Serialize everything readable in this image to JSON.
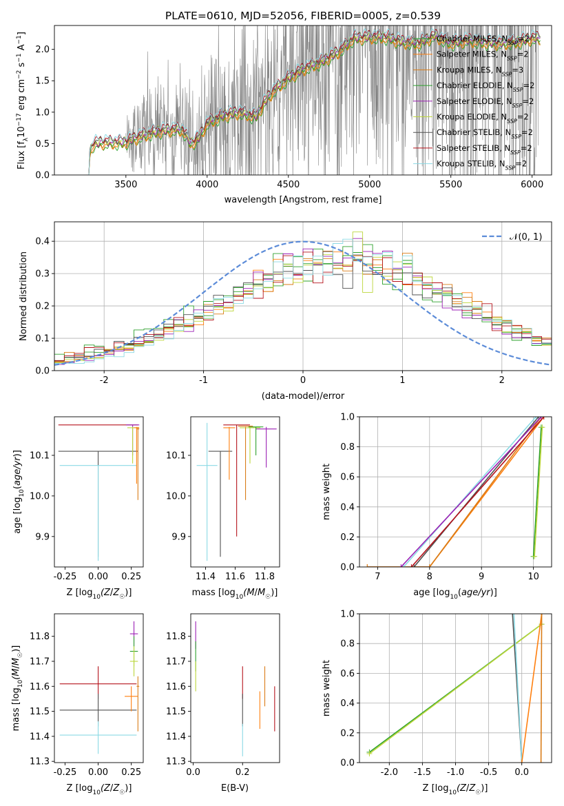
{
  "title": "PLATE=0610, MJD=52056, FIBERID=0005, z=0.539",
  "colors": {
    "Chabrier MILES": "#2ca02c",
    "Salpeter MILES": "#ff7f0e",
    "Kroupa MILES": "#d97c17",
    "Chabrier ELODIE": "#2ca02c",
    "Salpeter ELODIE": "#9b1fb4",
    "Kroupa ELODIE": "#bcd63a",
    "Chabrier STELIB": "#505050",
    "Salpeter STELIB": "#b5121b",
    "Kroupa STELIB": "#8ad9e4",
    "data": "#808080",
    "normal": "#5b8bd8"
  },
  "legend": [
    {
      "prefix": "Chabrier MILES, N",
      "sub": "SSP",
      "suffix": "=2",
      "key": "Chabrier MILES"
    },
    {
      "prefix": "Salpeter MILES, N",
      "sub": "SSP",
      "suffix": "=2",
      "key": "Salpeter MILES"
    },
    {
      "prefix": "Kroupa MILES, N",
      "sub": "SSP",
      "suffix": "=3",
      "key": "Kroupa MILES"
    },
    {
      "prefix": "Chabrier ELODIE, N",
      "sub": "SSP",
      "suffix": "=2",
      "key": "Chabrier ELODIE"
    },
    {
      "prefix": "Salpeter ELODIE, N",
      "sub": "SSP",
      "suffix": "=2",
      "key": "Salpeter ELODIE"
    },
    {
      "prefix": "Kroupa ELODIE, N",
      "sub": "SSP",
      "suffix": "=2",
      "key": "Kroupa ELODIE"
    },
    {
      "prefix": "Chabrier STELIB, N",
      "sub": "SSP",
      "suffix": "=2",
      "key": "Chabrier STELIB"
    },
    {
      "prefix": "Salpeter STELIB, N",
      "sub": "SSP",
      "suffix": "=2",
      "key": "Salpeter STELIB"
    },
    {
      "prefix": "Kroupa STELIB, N",
      "sub": "SSP",
      "suffix": "=2",
      "key": "Kroupa STELIB"
    }
  ],
  "chart_data": [
    {
      "id": "spectrum",
      "type": "line",
      "xlabel": "wavelength [Angstrom, rest frame]",
      "ylabel_parts": {
        "a": "Flux [f",
        "sub1": "λ",
        "b": "10",
        "sup1": "−17",
        "c": " erg cm",
        "sup2": "−2",
        "d": " s",
        "sup3": "−1",
        "e": " A",
        "sup4": "−1",
        "f": "]"
      },
      "xlim": [
        3060,
        6120
      ],
      "ylim": [
        0,
        2.38
      ],
      "xticks": [
        3500,
        4000,
        4500,
        5000,
        5500,
        6000
      ],
      "yticks": [
        0.0,
        0.5,
        1.0,
        1.5,
        2.0
      ],
      "legend_position": "top-right",
      "grid": false,
      "model_continuum": {
        "x": [
          3260,
          3280,
          3300,
          3350,
          3400,
          3450,
          3500,
          3600,
          3700,
          3800,
          3850,
          3900,
          3950,
          4000,
          4100,
          4200,
          4300,
          4350,
          4400,
          4500,
          4600,
          4700,
          4800,
          4850,
          4900,
          5000,
          5100,
          5200,
          5300,
          5400,
          5500,
          5600,
          5700,
          5800,
          5900,
          6000,
          6050
        ],
        "y": [
          0.0,
          0.38,
          0.5,
          0.52,
          0.52,
          0.52,
          0.53,
          0.63,
          0.7,
          0.73,
          0.72,
          0.5,
          0.6,
          0.83,
          0.95,
          1.0,
          0.93,
          1.15,
          1.32,
          1.55,
          1.7,
          1.8,
          1.95,
          2.05,
          2.18,
          2.2,
          2.2,
          2.12,
          2.1,
          2.22,
          2.1,
          2.15,
          2.12,
          2.1,
          2.12,
          2.18,
          2.18
        ]
      },
      "data_range": [
        3500,
        6040
      ]
    },
    {
      "id": "residuals",
      "type": "step",
      "xlabel": "(data-model)/error",
      "ylabel": "Normed distribution",
      "xlim": [
        -2.5,
        2.5
      ],
      "ylim": [
        0,
        0.46
      ],
      "xticks": [
        -2,
        -1,
        0,
        1,
        2
      ],
      "yticks": [
        0.0,
        0.1,
        0.2,
        0.3,
        0.4
      ],
      "grid": true,
      "normal_label": "𝒩(0, 1)",
      "bins": 50,
      "shift": 0.4
    },
    {
      "id": "age-vs-Z",
      "type": "errorbar",
      "xlabel_parts": {
        "a": "Z [log",
        "sub": "10",
        "b": "(Z/Z",
        "c": "☉",
        "d": ")]"
      },
      "ylabel_parts": {
        "a": "age  [log",
        "sub": "10",
        "b": "(age/yr)]"
      },
      "xlim": [
        -0.33,
        0.34
      ],
      "ylim": [
        9.825,
        10.195
      ],
      "xticks": [
        -0.25,
        0.0,
        0.25
      ],
      "yticks": [
        9.9,
        10.0,
        10.1
      ],
      "points": [
        {
          "key": "Chabrier STELIB",
          "x": 0.0,
          "xerr": 0.3,
          "y": 10.11,
          "ylo": 9.85,
          "yhi": 10.11
        },
        {
          "key": "Kroupa STELIB",
          "x": 0.0,
          "xerr": 0.29,
          "y": 10.075,
          "ylo": 9.84,
          "yhi": 10.075
        },
        {
          "key": "Salpeter STELIB",
          "x": 0.0,
          "xerr": 0.3,
          "y": 10.175,
          "ylo": 10.175,
          "yhi": 10.175
        },
        {
          "key": "Salpeter ELODIE",
          "x": 0.26,
          "xerr": 0.05,
          "y": 10.175,
          "ylo": 10.1,
          "yhi": 10.175
        },
        {
          "key": "Kroupa ELODIE",
          "x": 0.26,
          "xerr": 0.04,
          "y": 10.168,
          "ylo": 10.08,
          "yhi": 10.17
        },
        {
          "key": "Salpeter MILES",
          "x": 0.29,
          "xerr": 0.02,
          "y": 10.168,
          "ylo": 10.03,
          "yhi": 10.17
        },
        {
          "key": "Kroupa MILES",
          "x": 0.3,
          "xerr": 0.01,
          "y": 10.165,
          "ylo": 9.99,
          "yhi": 10.17
        }
      ]
    },
    {
      "id": "age-vs-mass",
      "type": "errorbar",
      "xlabel_parts": {
        "a": "mass [log",
        "sub": "10",
        "b": "(M/M",
        "c": "☉",
        "d": ")]"
      },
      "xlim": [
        11.3,
        11.9
      ],
      "ylim": [
        9.825,
        10.195
      ],
      "xticks": [
        11.4,
        11.6,
        11.8
      ],
      "yticks": [
        9.9,
        10.0,
        10.1
      ],
      "points": [
        {
          "key": "Chabrier STELIB",
          "x": 11.5,
          "xerr": 0.08,
          "y": 10.11,
          "ylo": 9.85,
          "yhi": 10.11
        },
        {
          "key": "Kroupa STELIB",
          "x": 11.41,
          "xerr": 0.07,
          "y": 10.075,
          "ylo": 9.84,
          "yhi": 10.18
        },
        {
          "key": "Salpeter STELIB",
          "x": 11.61,
          "xerr": 0.09,
          "y": 10.175,
          "ylo": 9.9,
          "yhi": 10.175
        },
        {
          "key": "Salpeter ELODIE",
          "x": 11.81,
          "xerr": 0.07,
          "y": 10.165,
          "ylo": 10.07,
          "yhi": 10.17
        },
        {
          "key": "Kroupa ELODIE",
          "x": 11.7,
          "xerr": 0.07,
          "y": 10.168,
          "ylo": 10.08,
          "yhi": 10.17
        },
        {
          "key": "Chabrier ELODIE",
          "x": 11.74,
          "xerr": 0.05,
          "y": 10.17,
          "ylo": 10.1,
          "yhi": 10.17
        },
        {
          "key": "Salpeter MILES",
          "x": 11.56,
          "xerr": 0.04,
          "y": 10.168,
          "ylo": 10.04,
          "yhi": 10.17
        },
        {
          "key": "Kroupa MILES",
          "x": 11.67,
          "xerr": 0.05,
          "y": 10.172,
          "ylo": 9.99,
          "yhi": 10.17
        }
      ]
    },
    {
      "id": "weight-vs-age",
      "type": "line",
      "xlabel_parts": {
        "a": "age  [log",
        "sub": "10",
        "b": "(age/yr)]"
      },
      "ylabel": "mass weight",
      "xlim": [
        6.65,
        10.35
      ],
      "ylim": [
        0,
        1
      ],
      "xticks": [
        7,
        8,
        9,
        10
      ],
      "yticks": [
        0.0,
        0.2,
        0.4,
        0.6,
        0.8,
        1.0
      ],
      "grid": true,
      "series": [
        {
          "key": "Salpeter MILES",
          "x": [
            6.8,
            8.0,
            10.2
          ],
          "y": [
            0.0,
            0.0,
            1.0
          ]
        },
        {
          "key": "Kroupa MILES",
          "x": [
            6.8,
            8.0,
            10.15
          ],
          "y": [
            0.0,
            0.0,
            1.0
          ]
        },
        {
          "key": "Chabrier STELIB",
          "x": [
            7.7,
            10.1
          ],
          "y": [
            0.0,
            1.0
          ]
        },
        {
          "key": "Salpeter STELIB",
          "x": [
            7.65,
            10.2
          ],
          "y": [
            0.0,
            1.0
          ]
        },
        {
          "key": "Kroupa STELIB",
          "x": [
            7.5,
            10.05
          ],
          "y": [
            0.0,
            1.0
          ]
        },
        {
          "key": "Salpeter ELODIE",
          "x": [
            7.45,
            10.15
          ],
          "y": [
            0.0,
            1.0
          ]
        },
        {
          "key": "Chabrier ELODIE",
          "x": [
            10.0,
            10.15
          ],
          "y": [
            0.07,
            0.93
          ]
        },
        {
          "key": "Kroupa ELODIE",
          "x": [
            10.02,
            10.17
          ],
          "y": [
            0.07,
            0.93
          ]
        }
      ]
    },
    {
      "id": "mass-vs-Z",
      "type": "errorbar",
      "xlabel_parts": {
        "a": "Z [log",
        "sub": "10",
        "b": "(Z/Z",
        "c": "☉",
        "d": ")]"
      },
      "ylabel_parts": {
        "a": "mass [log",
        "sub": "10",
        "b": "(M/M",
        "c": "☉",
        "d": ")]"
      },
      "xlim": [
        -0.33,
        0.34
      ],
      "ylim": [
        11.295,
        11.89
      ],
      "xticks": [
        -0.25,
        0.0,
        0.25
      ],
      "yticks": [
        11.3,
        11.4,
        11.5,
        11.6,
        11.7,
        11.8
      ],
      "points": [
        {
          "key": "Salpeter STELIB",
          "x": 0.0,
          "xerr": 0.29,
          "y": 11.61,
          "ylo": 11.55,
          "yhi": 11.68
        },
        {
          "key": "Chabrier STELIB",
          "x": 0.0,
          "xerr": 0.29,
          "y": 11.505,
          "ylo": 11.44,
          "yhi": 11.57
        },
        {
          "key": "Kroupa STELIB",
          "x": 0.0,
          "xerr": 0.29,
          "y": 11.405,
          "ylo": 11.33,
          "yhi": 11.46
        },
        {
          "key": "Salpeter ELODIE",
          "x": 0.27,
          "xerr": 0.03,
          "y": 11.81,
          "ylo": 11.76,
          "yhi": 11.86
        },
        {
          "key": "Chabrier ELODIE",
          "x": 0.27,
          "xerr": 0.03,
          "y": 11.74,
          "ylo": 11.68,
          "yhi": 11.8
        },
        {
          "key": "Kroupa ELODIE",
          "x": 0.27,
          "xerr": 0.03,
          "y": 11.7,
          "ylo": 11.64,
          "yhi": 11.76
        },
        {
          "key": "Salpeter MILES",
          "x": 0.25,
          "xerr": 0.05,
          "y": 11.56,
          "ylo": 11.5,
          "yhi": 11.6
        },
        {
          "key": "Kroupa MILES",
          "x": 0.3,
          "xerr": 0.01,
          "y": 11.6,
          "ylo": 11.42,
          "yhi": 11.64
        }
      ]
    },
    {
      "id": "mass-vs-ebv",
      "type": "errorbar",
      "xlabel": "E(B-V)",
      "xlim": [
        -0.01,
        0.35
      ],
      "ylim": [
        11.295,
        11.89
      ],
      "xticks": [
        0.0,
        0.2
      ],
      "yticks": [
        11.3,
        11.4,
        11.5,
        11.6,
        11.7,
        11.8
      ],
      "points": [
        {
          "key": "Salpeter ELODIE",
          "x": 0.01,
          "y": 11.8,
          "ylo": 11.75,
          "yhi": 11.86
        },
        {
          "key": "Chabrier ELODIE",
          "x": 0.01,
          "y": 11.72,
          "ylo": 11.66,
          "yhi": 11.78
        },
        {
          "key": "Kroupa ELODIE",
          "x": 0.01,
          "y": 11.64,
          "ylo": 11.58,
          "yhi": 11.7
        },
        {
          "key": "Salpeter STELIB",
          "x": 0.2,
          "y": 11.62,
          "ylo": 11.55,
          "yhi": 11.68
        },
        {
          "key": "Chabrier STELIB",
          "x": 0.2,
          "y": 11.5,
          "ylo": 11.44,
          "yhi": 11.57
        },
        {
          "key": "Kroupa STELIB",
          "x": 0.2,
          "y": 11.38,
          "ylo": 11.32,
          "yhi": 11.45
        },
        {
          "key": "Salpeter MILES",
          "x": 0.27,
          "y": 11.5,
          "ylo": 11.43,
          "yhi": 11.58
        },
        {
          "key": "Kroupa MILES",
          "x": 0.29,
          "y": 11.6,
          "ylo": 11.52,
          "yhi": 11.68
        },
        {
          "key": "Salpeter STELIB",
          "x": 0.33,
          "y": 11.5,
          "ylo": 11.42,
          "yhi": 11.6
        }
      ]
    },
    {
      "id": "weight-vs-Z",
      "type": "line",
      "xlabel_parts": {
        "a": "Z [log",
        "sub": "10",
        "b": "(Z/Z",
        "c": "☉",
        "d": ")]"
      },
      "ylabel": "mass weight",
      "xlim": [
        -2.45,
        0.45
      ],
      "ylim": [
        0,
        1
      ],
      "xticks": [
        -2.0,
        -1.5,
        -1.0,
        -0.5,
        0.0
      ],
      "yticks": [
        0.0,
        0.2,
        0.4,
        0.6,
        0.8,
        1.0
      ],
      "grid": true,
      "series": [
        {
          "key": "Chabrier ELODIE",
          "x": [
            -2.3,
            0.3
          ],
          "y": [
            0.07,
            0.93
          ]
        },
        {
          "key": "Kroupa ELODIE",
          "x": [
            -2.3,
            0.3
          ],
          "y": [
            0.06,
            0.93
          ]
        },
        {
          "key": "Chabrier STELIB",
          "x": [
            -0.14,
            0.0
          ],
          "y": [
            1.0,
            0.0
          ]
        },
        {
          "key": "Kroupa STELIB",
          "x": [
            -0.12,
            0.0
          ],
          "y": [
            1.0,
            0.0
          ]
        },
        {
          "key": "Salpeter MILES",
          "x": [
            0.0,
            0.3
          ],
          "y": [
            0.0,
            1.0
          ]
        },
        {
          "key": "Kroupa MILES",
          "x": [
            0.29,
            0.3
          ],
          "y": [
            0.0,
            1.0
          ]
        }
      ]
    }
  ]
}
